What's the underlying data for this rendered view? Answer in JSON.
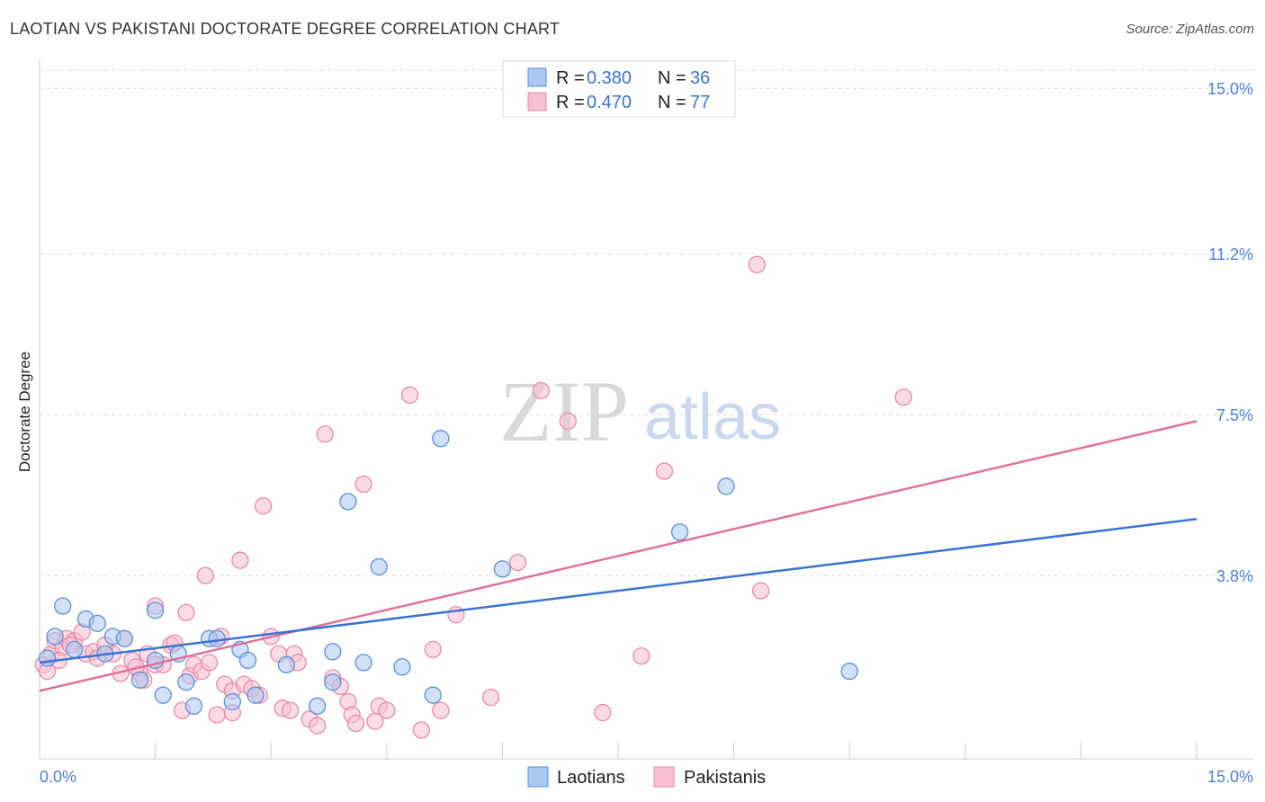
{
  "header": {
    "title": "LAOTIAN VS PAKISTANI DOCTORATE DEGREE CORRELATION CHART",
    "source": "Source: ZipAtlas.com"
  },
  "watermark": {
    "zip": "ZIP",
    "atlas": "atlas"
  },
  "legend_top": {
    "rows": [
      {
        "r_label": "R =",
        "r_value": "0.380",
        "n_label": "N =",
        "n_value": "36"
      },
      {
        "r_label": "R =",
        "r_value": "0.470",
        "n_label": "N =",
        "n_value": "77"
      }
    ]
  },
  "legend_bottom": {
    "items": [
      "Laotians",
      "Pakistanis"
    ]
  },
  "colors": {
    "laotian_fill": "#a9c9f2",
    "laotian_stroke": "#5b8fd9",
    "laotian_line": "#3a74d0",
    "pakistani_fill": "#f8bfd0",
    "pakistani_stroke": "#e98aa8",
    "pakistani_line": "#e0709a",
    "axis_label": "#4a7fd4",
    "grid": "#dddddd"
  },
  "chart_data": {
    "type": "scatter",
    "title": "LAOTIAN VS PAKISTANI DOCTORATE DEGREE CORRELATION CHART",
    "xlabel": "",
    "ylabel": "Doctorate Degree",
    "xlim": [
      0,
      15
    ],
    "ylim": [
      0,
      15.5
    ],
    "x_tick_labels": [
      "0.0%",
      "15.0%"
    ],
    "y_ticks": [
      3.8,
      7.5,
      11.2,
      15.0
    ],
    "y_tick_labels": [
      "3.8%",
      "7.5%",
      "11.2%",
      "15.0%"
    ],
    "series": [
      {
        "name": "Laotians",
        "R": 0.38,
        "N": 36,
        "trend": {
          "x": [
            0,
            15
          ],
          "y": [
            1.8,
            5.1
          ]
        },
        "points": [
          [
            0.1,
            1.9
          ],
          [
            0.2,
            2.4
          ],
          [
            0.3,
            3.1
          ],
          [
            0.45,
            2.1
          ],
          [
            0.6,
            2.8
          ],
          [
            0.75,
            2.7
          ],
          [
            0.85,
            2.0
          ],
          [
            0.95,
            2.4
          ],
          [
            1.1,
            2.35
          ],
          [
            1.3,
            1.4
          ],
          [
            1.5,
            1.85
          ],
          [
            1.5,
            3.0
          ],
          [
            1.6,
            1.05
          ],
          [
            1.8,
            2.0
          ],
          [
            1.9,
            1.35
          ],
          [
            2.0,
            0.8
          ],
          [
            2.2,
            2.35
          ],
          [
            2.3,
            2.35
          ],
          [
            2.5,
            0.9
          ],
          [
            2.6,
            2.1
          ],
          [
            2.7,
            1.85
          ],
          [
            2.8,
            1.05
          ],
          [
            3.2,
            1.75
          ],
          [
            3.6,
            0.8
          ],
          [
            3.8,
            2.05
          ],
          [
            3.8,
            1.35
          ],
          [
            4.0,
            5.5
          ],
          [
            4.2,
            1.8
          ],
          [
            4.4,
            4.0
          ],
          [
            4.7,
            1.7
          ],
          [
            5.1,
            1.05
          ],
          [
            5.2,
            6.95
          ],
          [
            6.0,
            3.95
          ],
          [
            8.3,
            4.8
          ],
          [
            8.9,
            5.85
          ],
          [
            10.5,
            1.6
          ]
        ]
      },
      {
        "name": "Pakistanis",
        "R": 0.47,
        "N": 77,
        "trend": {
          "x": [
            0,
            15
          ],
          "y": [
            1.15,
            7.35
          ]
        },
        "points": [
          [
            0.05,
            1.75
          ],
          [
            0.15,
            2.0
          ],
          [
            0.2,
            2.3
          ],
          [
            0.3,
            2.15
          ],
          [
            0.35,
            2.35
          ],
          [
            0.45,
            2.3
          ],
          [
            0.55,
            2.5
          ],
          [
            0.6,
            2.0
          ],
          [
            0.7,
            2.05
          ],
          [
            0.75,
            1.9
          ],
          [
            0.85,
            2.2
          ],
          [
            0.95,
            2.0
          ],
          [
            1.05,
            1.55
          ],
          [
            1.1,
            2.35
          ],
          [
            1.2,
            1.85
          ],
          [
            1.3,
            1.55
          ],
          [
            1.35,
            1.4
          ],
          [
            1.4,
            2.0
          ],
          [
            1.5,
            1.75
          ],
          [
            1.5,
            3.1
          ],
          [
            1.6,
            1.75
          ],
          [
            1.7,
            2.2
          ],
          [
            1.75,
            2.25
          ],
          [
            1.85,
            0.7
          ],
          [
            1.9,
            2.95
          ],
          [
            1.95,
            1.5
          ],
          [
            2.0,
            1.75
          ],
          [
            2.1,
            1.6
          ],
          [
            2.15,
            3.8
          ],
          [
            2.2,
            1.8
          ],
          [
            2.3,
            0.6
          ],
          [
            2.35,
            2.4
          ],
          [
            2.4,
            1.3
          ],
          [
            2.5,
            1.15
          ],
          [
            2.5,
            0.65
          ],
          [
            2.6,
            4.15
          ],
          [
            2.65,
            1.3
          ],
          [
            2.75,
            1.2
          ],
          [
            2.85,
            1.05
          ],
          [
            2.9,
            5.4
          ],
          [
            3.0,
            2.4
          ],
          [
            3.1,
            2.0
          ],
          [
            3.15,
            0.75
          ],
          [
            3.25,
            0.7
          ],
          [
            3.3,
            2.0
          ],
          [
            3.35,
            1.8
          ],
          [
            3.5,
            0.5
          ],
          [
            3.6,
            0.35
          ],
          [
            3.7,
            7.05
          ],
          [
            3.8,
            1.45
          ],
          [
            3.9,
            1.25
          ],
          [
            4.0,
            0.9
          ],
          [
            4.05,
            0.6
          ],
          [
            4.1,
            0.4
          ],
          [
            4.2,
            5.9
          ],
          [
            4.35,
            0.45
          ],
          [
            4.4,
            0.8
          ],
          [
            4.5,
            0.7
          ],
          [
            4.8,
            7.95
          ],
          [
            4.95,
            0.25
          ],
          [
            5.1,
            2.1
          ],
          [
            5.2,
            0.7
          ],
          [
            5.4,
            2.9
          ],
          [
            5.85,
            1.0
          ],
          [
            6.2,
            4.1
          ],
          [
            6.5,
            8.05
          ],
          [
            6.85,
            7.35
          ],
          [
            7.3,
            0.65
          ],
          [
            7.8,
            1.95
          ],
          [
            8.1,
            6.2
          ],
          [
            9.3,
            10.95
          ],
          [
            9.35,
            3.45
          ],
          [
            11.2,
            7.9
          ],
          [
            0.1,
            1.6
          ],
          [
            0.25,
            1.85
          ],
          [
            0.4,
            2.2
          ],
          [
            1.25,
            1.7
          ]
        ]
      }
    ]
  }
}
